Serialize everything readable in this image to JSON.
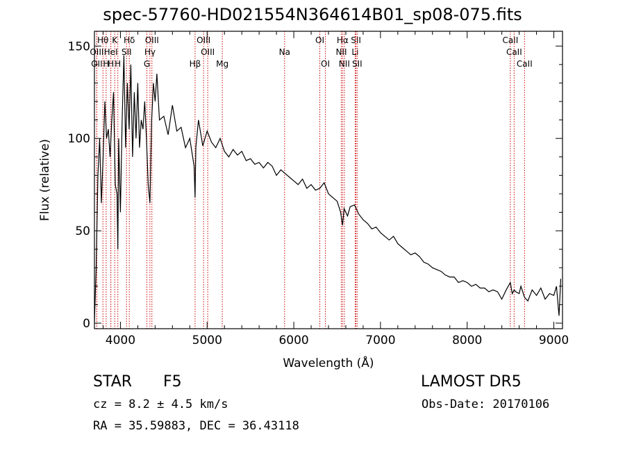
{
  "chart_data": {
    "type": "line",
    "title": "spec-57760-HD021554N364614B01_sp08-075.fits",
    "xlabel": "Wavelength (Å)",
    "ylabel": "Flux (relative)",
    "xlim": [
      3700,
      9100
    ],
    "ylim": [
      -3,
      158
    ],
    "xticks": [
      4000,
      5000,
      6000,
      7000,
      8000,
      9000
    ],
    "yticks": [
      0,
      50,
      100,
      150
    ],
    "grid": false,
    "series": [
      {
        "x": [
          3700,
          3720,
          3740,
          3760,
          3780,
          3800,
          3820,
          3840,
          3860,
          3880,
          3900,
          3920,
          3940,
          3960,
          3970,
          3980,
          4000,
          4020,
          4040,
          4060,
          4080,
          4100,
          4120,
          4140,
          4160,
          4180,
          4200,
          4220,
          4240,
          4260,
          4280,
          4300,
          4320,
          4340,
          4360,
          4380,
          4400,
          4420,
          4450,
          4500,
          4550,
          4600,
          4650,
          4700,
          4750,
          4800,
          4850,
          4861,
          4870,
          4900,
          4950,
          5000,
          5050,
          5100,
          5150,
          5200,
          5250,
          5300,
          5350,
          5400,
          5450,
          5500,
          5550,
          5600,
          5650,
          5700,
          5750,
          5800,
          5850,
          5900,
          5950,
          6000,
          6050,
          6100,
          6150,
          6200,
          6250,
          6300,
          6350,
          6400,
          6450,
          6500,
          6540,
          6563,
          6580,
          6620,
          6650,
          6700,
          6750,
          6800,
          6850,
          6900,
          6950,
          7000,
          7050,
          7100,
          7150,
          7200,
          7250,
          7300,
          7350,
          7400,
          7450,
          7500,
          7550,
          7600,
          7650,
          7700,
          7750,
          7800,
          7850,
          7900,
          7950,
          8000,
          8050,
          8100,
          8150,
          8200,
          8250,
          8300,
          8350,
          8400,
          8450,
          8498,
          8520,
          8542,
          8560,
          8600,
          8620,
          8662,
          8700,
          8750,
          8800,
          8850,
          8900,
          8950,
          9000,
          9030,
          9060,
          9080
        ],
        "values": [
          1,
          30,
          80,
          100,
          65,
          90,
          120,
          100,
          105,
          90,
          110,
          125,
          75,
          70,
          40,
          100,
          60,
          110,
          145,
          95,
          130,
          105,
          140,
          90,
          125,
          100,
          130,
          95,
          110,
          105,
          120,
          100,
          75,
          65,
          110,
          130,
          120,
          135,
          110,
          112,
          102,
          118,
          104,
          106,
          95,
          100,
          85,
          68,
          95,
          110,
          96,
          104,
          98,
          95,
          100,
          93,
          90,
          94,
          91,
          93,
          88,
          89,
          86,
          87,
          84,
          87,
          85,
          80,
          83,
          81,
          79,
          77,
          75,
          78,
          73,
          75,
          72,
          73,
          76,
          70,
          68,
          66,
          60,
          53,
          62,
          58,
          63,
          64,
          59,
          56,
          54,
          51,
          52,
          49,
          47,
          45,
          47,
          43,
          41,
          39,
          37,
          38,
          36,
          33,
          32,
          30,
          29,
          28,
          26,
          25,
          25,
          22,
          23,
          22,
          20,
          21,
          19,
          19,
          17,
          18,
          17,
          13,
          18,
          22,
          16,
          18,
          17,
          16,
          20,
          14,
          12,
          18,
          15,
          19,
          13,
          16,
          15,
          20,
          4,
          24
        ]
      }
    ],
    "lines": [
      {
        "label": "OII",
        "x": 3727,
        "row": 3
      },
      {
        "label": "Hθ",
        "x": 3798,
        "row": 1
      },
      {
        "label": "H",
        "x": 3835,
        "row": 3
      },
      {
        "label": "H",
        "x": 3889,
        "row": 3
      },
      {
        "label": "OIII",
        "x": 3727,
        "row": 2
      },
      {
        "label": "K",
        "x": 3934,
        "row": 1
      },
      {
        "label": "HeI",
        "x": 3889,
        "row": 2
      },
      {
        "label": "H",
        "x": 3970,
        "row": 3
      },
      {
        "label": "Hδ",
        "x": 4102,
        "row": 1
      },
      {
        "label": "SII",
        "x": 4070,
        "row": 2
      },
      {
        "label": "OIII",
        "x": 4363,
        "row": 1
      },
      {
        "label": "Hγ",
        "x": 4340,
        "row": 2
      },
      {
        "label": "G",
        "x": 4305,
        "row": 3
      },
      {
        "label": "OIII",
        "x": 4959,
        "row": 1
      },
      {
        "label": "OIII",
        "x": 5007,
        "row": 2
      },
      {
        "label": "Hβ",
        "x": 4861,
        "row": 3
      },
      {
        "label": "Mg",
        "x": 5175,
        "row": 3
      },
      {
        "label": "Na",
        "x": 5894,
        "row": 2
      },
      {
        "label": "OI",
        "x": 6300,
        "row": 1
      },
      {
        "label": "OI",
        "x": 6364,
        "row": 3
      },
      {
        "label": "Hα",
        "x": 6563,
        "row": 1
      },
      {
        "label": "NII",
        "x": 6548,
        "row": 2
      },
      {
        "label": "NII",
        "x": 6583,
        "row": 3
      },
      {
        "label": "SII",
        "x": 6717,
        "row": 1
      },
      {
        "label": "Li",
        "x": 6708,
        "row": 2
      },
      {
        "label": "SII",
        "x": 6731,
        "row": 3
      },
      {
        "label": "CaII",
        "x": 8498,
        "row": 1
      },
      {
        "label": "CaII",
        "x": 8542,
        "row": 2
      },
      {
        "label": "CaII",
        "x": 8662,
        "row": 3
      }
    ]
  },
  "info": {
    "obj_type": "STAR",
    "obj_subclass": "F5",
    "survey": "LAMOST DR5",
    "cz": "cz = 8.2 ± 4.5 km/s",
    "obs_date": "Obs-Date: 20170106",
    "radec": "RA =  35.59883, DEC =  36.43118"
  },
  "colors": {
    "spectrum": "#000000",
    "line_markers": "#cc0000",
    "axes": "#000000"
  }
}
